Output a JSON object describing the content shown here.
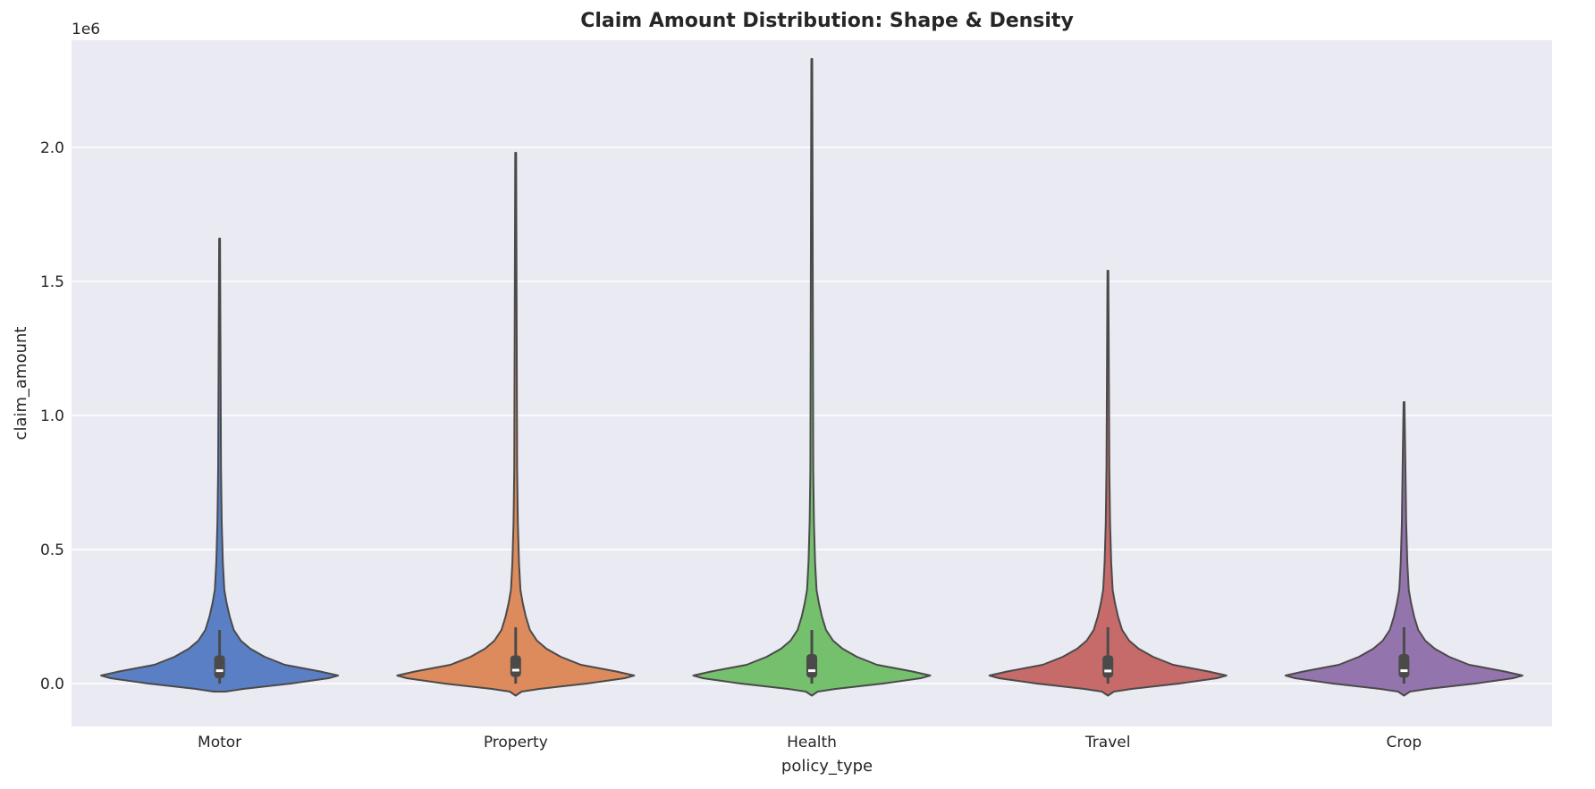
{
  "chart_data": {
    "type": "violin",
    "title": "Claim Amount Distribution: Shape & Density",
    "xlabel": "policy_type",
    "ylabel": "claim_amount",
    "y_offset_label": "1e6",
    "ylim": [
      -0.16,
      2.4
    ],
    "yticks": [
      0.0,
      0.5,
      1.0,
      1.5,
      2.0
    ],
    "ytick_labels": [
      "0.0",
      "0.5",
      "1.0",
      "1.5",
      "2.0"
    ],
    "grid": true,
    "categories": [
      "Motor",
      "Property",
      "Health",
      "Travel",
      "Crop"
    ],
    "colors": [
      "#5a7fc4",
      "#dd8a5c",
      "#74c06d",
      "#c76a6a",
      "#9474ad"
    ],
    "series": [
      {
        "category": "Motor",
        "min": -0.03,
        "max": 1.66,
        "q1": 0.02,
        "median": 0.048,
        "q3": 0.105,
        "whisker_low": 0.0,
        "whisker_high": 0.2
      },
      {
        "category": "Property",
        "min": -0.04,
        "max": 1.98,
        "q1": 0.025,
        "median": 0.05,
        "q3": 0.105,
        "whisker_low": 0.0,
        "whisker_high": 0.21
      },
      {
        "category": "Health",
        "min": -0.04,
        "max": 2.33,
        "q1": 0.022,
        "median": 0.048,
        "q3": 0.11,
        "whisker_low": 0.0,
        "whisker_high": 0.2
      },
      {
        "category": "Travel",
        "min": -0.04,
        "max": 1.54,
        "q1": 0.022,
        "median": 0.047,
        "q3": 0.105,
        "whisker_low": 0.0,
        "whisker_high": 0.21
      },
      {
        "category": "Crop",
        "min": -0.04,
        "max": 1.05,
        "q1": 0.022,
        "median": 0.048,
        "q3": 0.11,
        "whisker_low": 0.0,
        "whisker_high": 0.21
      }
    ]
  }
}
